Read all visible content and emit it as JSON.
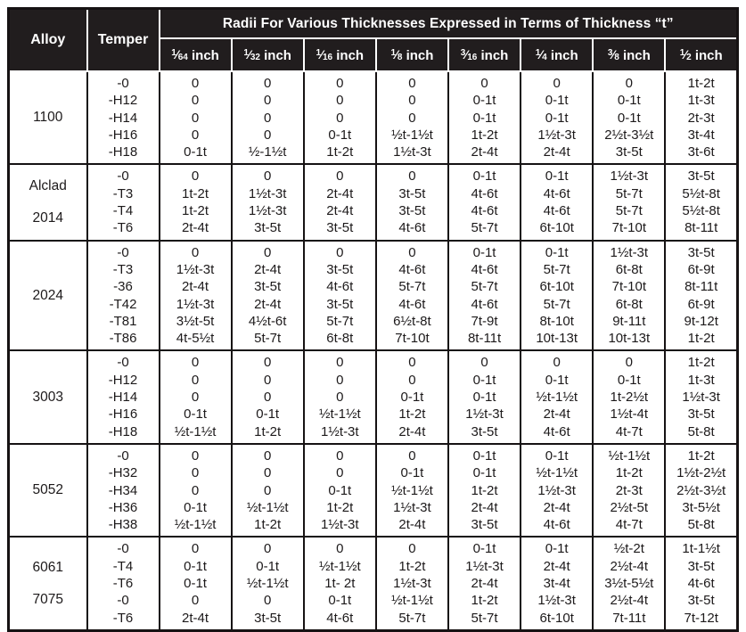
{
  "colors": {
    "header_bg": "#211d1e",
    "grid": "#161213",
    "text": "#1d1a1b",
    "header_text": "#ffffff"
  },
  "table": {
    "header": {
      "alloy_label": "Alloy",
      "temper_label": "Temper",
      "radii_title": "Radii For Various Thicknesses Expressed in Terms of Thickness “t”",
      "thickness_columns": [
        {
          "num": "1",
          "den": "64",
          "unit": "inch"
        },
        {
          "num": "1",
          "den": "32",
          "unit": "inch"
        },
        {
          "num": "1",
          "den": "16",
          "unit": "inch"
        },
        {
          "num": "1",
          "den": "8",
          "unit": "inch"
        },
        {
          "num": "3",
          "den": "16",
          "unit": "inch"
        },
        {
          "num": "1",
          "den": "4",
          "unit": "inch"
        },
        {
          "num": "3",
          "den": "8",
          "unit": "inch"
        },
        {
          "num": "1",
          "den": "2",
          "unit": "inch"
        }
      ]
    },
    "groups": [
      {
        "alloy_lines": [
          "1100"
        ],
        "rows": [
          {
            "temper": "-0",
            "values": [
              "0",
              "0",
              "0",
              "0",
              "0",
              "0",
              "0",
              "1t-2t"
            ]
          },
          {
            "temper": "-H12",
            "values": [
              "0",
              "0",
              "0",
              "0",
              "0-1t",
              "0-1t",
              "0-1t",
              "1t-3t"
            ]
          },
          {
            "temper": "-H14",
            "values": [
              "0",
              "0",
              "0",
              "0",
              "0-1t",
              "0-1t",
              "0-1t",
              "2t-3t"
            ]
          },
          {
            "temper": "-H16",
            "values": [
              "0",
              "0",
              "0-1t",
              "½t-1½t",
              "1t-2t",
              "1½t-3t",
              "2½t-3½t",
              "3t-4t"
            ]
          },
          {
            "temper": "-H18",
            "values": [
              "0-1t",
              "½-1½t",
              "1t-2t",
              "1½t-3t",
              "2t-4t",
              "2t-4t",
              "3t-5t",
              "3t-6t"
            ]
          }
        ]
      },
      {
        "alloy_lines": [
          "Alclad",
          "2014"
        ],
        "rows": [
          {
            "temper": "-0",
            "values": [
              "0",
              "0",
              "0",
              "0",
              "0-1t",
              "0-1t",
              "1½t-3t",
              "3t-5t"
            ]
          },
          {
            "temper": "-T3",
            "values": [
              "1t-2t",
              "1½t-3t",
              "2t-4t",
              "3t-5t",
              "4t-6t",
              "4t-6t",
              "5t-7t",
              "5½t-8t"
            ]
          },
          {
            "temper": "-T4",
            "values": [
              "1t-2t",
              "1½t-3t",
              "2t-4t",
              "3t-5t",
              "4t-6t",
              "4t-6t",
              "5t-7t",
              "5½t-8t"
            ]
          },
          {
            "temper": "-T6",
            "values": [
              "2t-4t",
              "3t-5t",
              "3t-5t",
              "4t-6t",
              "5t-7t",
              "6t-10t",
              "7t-10t",
              "8t-11t"
            ]
          }
        ]
      },
      {
        "alloy_lines": [
          "2024"
        ],
        "rows": [
          {
            "temper": "-0",
            "values": [
              "0",
              "0",
              "0",
              "0",
              "0-1t",
              "0-1t",
              "1½t-3t",
              "3t-5t"
            ]
          },
          {
            "temper": "-T3",
            "values": [
              "1½t-3t",
              "2t-4t",
              "3t-5t",
              "4t-6t",
              "4t-6t",
              "5t-7t",
              "6t-8t",
              "6t-9t"
            ]
          },
          {
            "temper": "-36",
            "values": [
              "2t-4t",
              "3t-5t",
              "4t-6t",
              "5t-7t",
              "5t-7t",
              "6t-10t",
              "7t-10t",
              "8t-11t"
            ]
          },
          {
            "temper": "-T42",
            "values": [
              "1½t-3t",
              "2t-4t",
              "3t-5t",
              "4t-6t",
              "4t-6t",
              "5t-7t",
              "6t-8t",
              "6t-9t"
            ]
          },
          {
            "temper": "-T81",
            "values": [
              "3½t-5t",
              "4½t-6t",
              "5t-7t",
              "6½t-8t",
              "7t-9t",
              "8t-10t",
              "9t-11t",
              "9t-12t"
            ]
          },
          {
            "temper": "-T86",
            "values": [
              "4t-5½t",
              "5t-7t",
              "6t-8t",
              "7t-10t",
              "8t-11t",
              "10t-13t",
              "10t-13t",
              "1t-2t"
            ]
          }
        ]
      },
      {
        "alloy_lines": [
          "3003"
        ],
        "rows": [
          {
            "temper": "-0",
            "values": [
              "0",
              "0",
              "0",
              "0",
              "0",
              "0",
              "0",
              "1t-2t"
            ]
          },
          {
            "temper": "-H12",
            "values": [
              "0",
              "0",
              "0",
              "0",
              "0-1t",
              "0-1t",
              "0-1t",
              "1t-3t"
            ]
          },
          {
            "temper": "-H14",
            "values": [
              "0",
              "0",
              "0",
              "0-1t",
              "0-1t",
              "½t-1½t",
              "1t-2½t",
              "1½t-3t"
            ]
          },
          {
            "temper": "-H16",
            "values": [
              "0-1t",
              "0-1t",
              "½t-1½t",
              "1t-2t",
              "1½t-3t",
              "2t-4t",
              "1½t-4t",
              "3t-5t"
            ]
          },
          {
            "temper": "-H18",
            "values": [
              "½t-1½t",
              "1t-2t",
              "1½t-3t",
              "2t-4t",
              "3t-5t",
              "4t-6t",
              "4t-7t",
              "5t-8t"
            ]
          }
        ]
      },
      {
        "alloy_lines": [
          "5052"
        ],
        "rows": [
          {
            "temper": "-0",
            "values": [
              "0",
              "0",
              "0",
              "0",
              "0-1t",
              "0-1t",
              "½t-1½t",
              "1t-2t"
            ]
          },
          {
            "temper": "-H32",
            "values": [
              "0",
              "0",
              "0",
              "0-1t",
              "0-1t",
              "½t-1½t",
              "1t-2t",
              "1½t-2½t"
            ]
          },
          {
            "temper": "-H34",
            "values": [
              "0",
              "0",
              "0-1t",
              "½t-1½t",
              "1t-2t",
              "1½t-3t",
              "2t-3t",
              "2½t-3½t"
            ]
          },
          {
            "temper": "-H36",
            "values": [
              "0-1t",
              "½t-1½t",
              "1t-2t",
              "1½t-3t",
              "2t-4t",
              "2t-4t",
              "2½t-5t",
              "3t-5½t"
            ]
          },
          {
            "temper": "-H38",
            "values": [
              "½t-1½t",
              "1t-2t",
              "1½t-3t",
              "2t-4t",
              "3t-5t",
              "4t-6t",
              "4t-7t",
              "5t-8t"
            ]
          }
        ]
      },
      {
        "alloy_lines": [
          "6061",
          "7075"
        ],
        "rows": [
          {
            "temper": "-0",
            "values": [
              "0",
              "0",
              "0",
              "0",
              "0-1t",
              "0-1t",
              "½t-2t",
              "1t-1½t"
            ]
          },
          {
            "temper": "-T4",
            "values": [
              "0-1t",
              "0-1t",
              "½t-1½t",
              "1t-2t",
              "1½t-3t",
              "2t-4t",
              "2½t-4t",
              "3t-5t"
            ]
          },
          {
            "temper": "-T6",
            "values": [
              "0-1t",
              "½t-1½t",
              "1t- 2t",
              "1½t-3t",
              "2t-4t",
              "3t-4t",
              "3½t-5½t",
              "4t-6t"
            ]
          },
          {
            "temper": "-0",
            "values": [
              "0",
              "0",
              "0-1t",
              "½t-1½t",
              "1t-2t",
              "1½t-3t",
              "2½t-4t",
              "3t-5t"
            ]
          },
          {
            "temper": "-T6",
            "values": [
              "2t-4t",
              "3t-5t",
              "4t-6t",
              "5t-7t",
              "5t-7t",
              "6t-10t",
              "7t-11t",
              "7t-12t"
            ]
          }
        ]
      }
    ]
  }
}
